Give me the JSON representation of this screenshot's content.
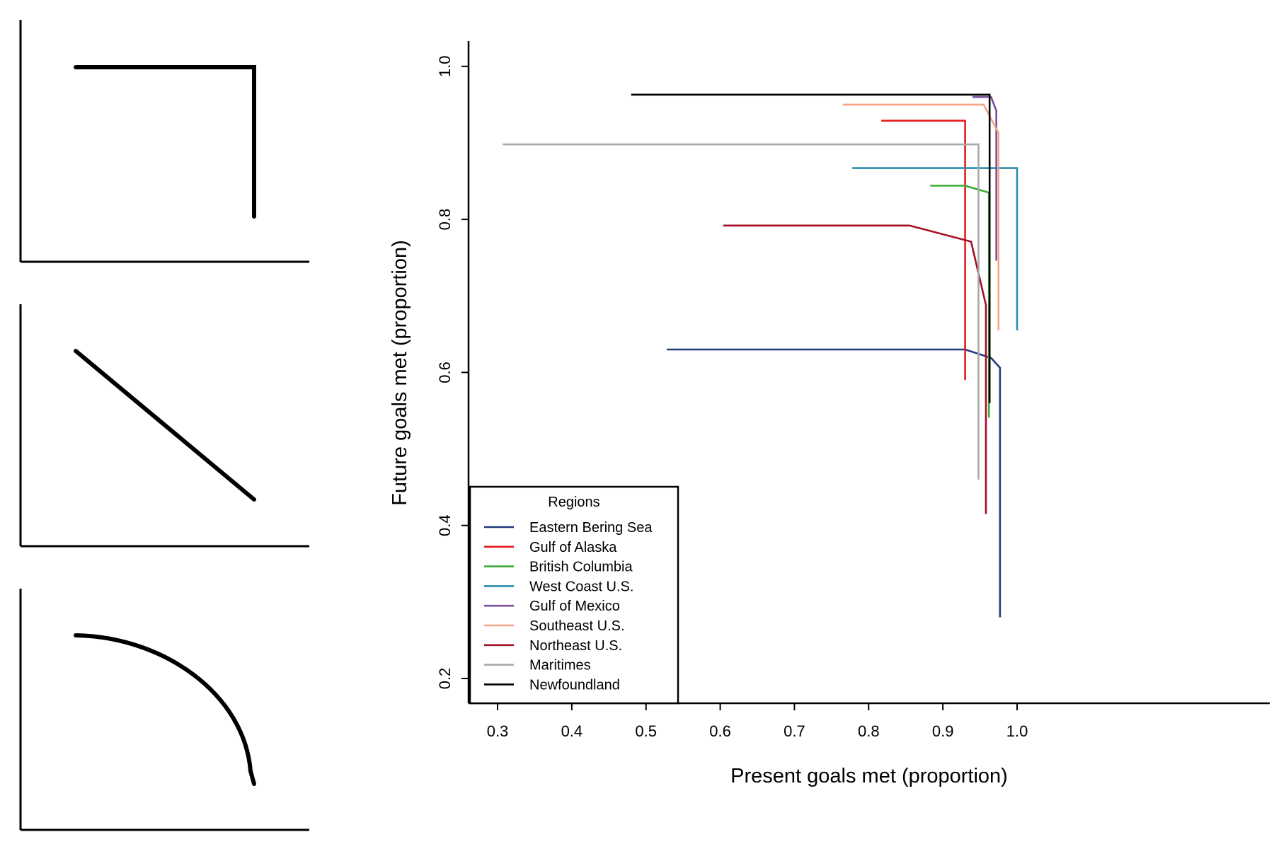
{
  "schematics": [
    {
      "shape": "right-angle",
      "description_of_curve": "horizontal then vertical drop"
    },
    {
      "shape": "straight-diagonal",
      "description_of_curve": "linear decline"
    },
    {
      "shape": "concave-curve",
      "description_of_curve": "rounded decline"
    }
  ],
  "chart_data": {
    "type": "line",
    "title": "",
    "xlabel": "Present goals met (proportion)",
    "ylabel": "Future goals met (proportion)",
    "xlim": [
      0.27,
      1.03
    ],
    "ylim": [
      0.17,
      1.035
    ],
    "x_ticks": [
      0.3,
      0.4,
      0.5,
      0.6,
      0.7,
      0.8,
      0.9,
      1.0
    ],
    "x_tick_labels": [
      "0.3",
      "0.4",
      "0.5",
      "0.6",
      "0.7",
      "0.8",
      "0.9",
      "1.0"
    ],
    "y_ticks": [
      0.2,
      0.4,
      0.6,
      0.8,
      1.0
    ],
    "y_tick_labels": [
      "0.2",
      "0.4",
      "0.6",
      "0.8",
      "1.0"
    ],
    "grid": false,
    "legend": {
      "title": "Regions",
      "position": "bottom-left"
    },
    "series": [
      {
        "name": "Eastern Bering Sea",
        "color": "#1f3a7a",
        "points": [
          [
            0.528,
            0.63
          ],
          [
            0.93,
            0.63
          ],
          [
            0.965,
            0.619
          ],
          [
            0.977,
            0.606
          ],
          [
            0.977,
            0.28
          ]
        ]
      },
      {
        "name": "Gulf of Alaska",
        "color": "#e41a1c",
        "points": [
          [
            0.817,
            0.929
          ],
          [
            0.93,
            0.929
          ],
          [
            0.93,
            0.59
          ]
        ]
      },
      {
        "name": "British Columbia",
        "color": "#3aaa35",
        "points": [
          [
            0.883,
            0.844
          ],
          [
            0.93,
            0.844
          ],
          [
            0.962,
            0.835
          ],
          [
            0.962,
            0.541
          ]
        ]
      },
      {
        "name": "West Coast U.S.",
        "color": "#2a8bad",
        "points": [
          [
            0.778,
            0.867
          ],
          [
            1.0,
            0.867
          ],
          [
            1.0,
            0.655
          ]
        ]
      },
      {
        "name": "Gulf of Mexico",
        "color": "#7b4fa0",
        "points": [
          [
            0.94,
            0.96
          ],
          [
            0.965,
            0.96
          ],
          [
            0.972,
            0.942
          ],
          [
            0.972,
            0.746
          ]
        ]
      },
      {
        "name": "Southeast U.S.",
        "color": "#f4a582",
        "points": [
          [
            0.765,
            0.95
          ],
          [
            0.955,
            0.95
          ],
          [
            0.975,
            0.913
          ],
          [
            0.975,
            0.655
          ]
        ]
      },
      {
        "name": "Northeast U.S.",
        "color": "#a50f25",
        "points": [
          [
            0.604,
            0.792
          ],
          [
            0.855,
            0.792
          ],
          [
            0.938,
            0.771
          ],
          [
            0.958,
            0.688
          ],
          [
            0.958,
            0.415
          ]
        ]
      },
      {
        "name": "Maritimes",
        "color": "#a6aaa9",
        "points": [
          [
            0.307,
            0.898
          ],
          [
            0.948,
            0.898
          ],
          [
            0.948,
            0.46
          ]
        ]
      },
      {
        "name": "Newfoundland",
        "color": "#000000",
        "points": [
          [
            0.48,
            0.963
          ],
          [
            0.963,
            0.963
          ],
          [
            0.963,
            0.56
          ]
        ]
      }
    ]
  }
}
